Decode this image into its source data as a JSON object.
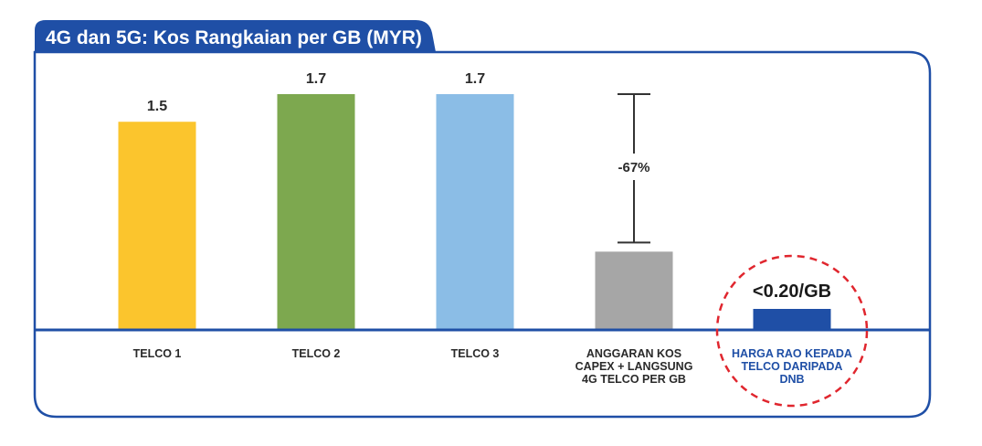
{
  "chart_data": {
    "type": "bar",
    "title": "4G dan 5G: Kos Rangkaian per GB (MYR)",
    "categories": [
      [
        "TELCO 1"
      ],
      [
        "TELCO 2"
      ],
      [
        "TELCO 3"
      ],
      [
        "ANGGARAN KOS",
        "CAPEX + LANGSUNG",
        "4G TELCO PER GB"
      ],
      [
        "HARGA RAO KEPADA",
        "TELCO DARIPADA",
        "DNB"
      ]
    ],
    "values": [
      1.5,
      1.7,
      1.7,
      0.56,
      0.2
    ],
    "value_labels": [
      "1.5",
      "1.7",
      "1.7",
      "",
      "<0.20/GB"
    ],
    "colors": [
      "#fbc52d",
      "#7da84f",
      "#8bbde6",
      "#a6a6a6",
      "#1f4fa6"
    ],
    "ylim": [
      0,
      1.7
    ],
    "annotation": {
      "label": "-67%",
      "from": 1.7,
      "to": 0.56,
      "category_index": 3
    },
    "highlight": {
      "category_index": 4,
      "style": "dashed-circle",
      "color": "#e0262e"
    },
    "frame_color": "#1f4fa6",
    "axis_color": "#1f4fa6"
  }
}
